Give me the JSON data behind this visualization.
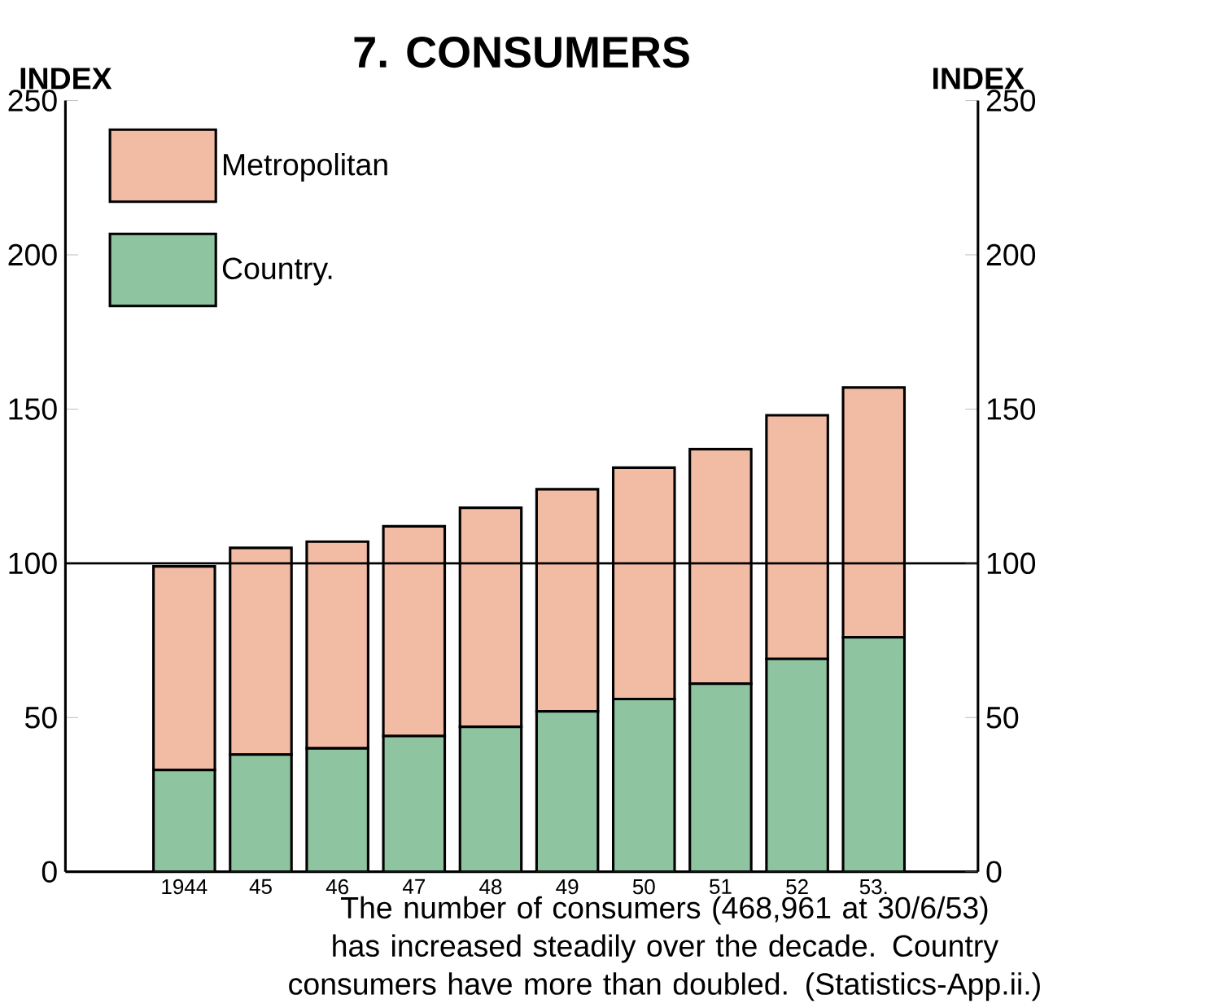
{
  "chart_data": {
    "type": "bar",
    "title": "7. CONSUMERS",
    "ylabel": "INDEX",
    "y2label": "INDEX",
    "categories": [
      "1944",
      "45",
      "46",
      "47",
      "48",
      "49",
      "50",
      "51",
      "52",
      "53."
    ],
    "stacked": true,
    "series": [
      {
        "name": "Country.",
        "color": "#8fc4a0",
        "values": [
          33,
          38,
          40,
          44,
          47,
          52,
          56,
          61,
          69,
          76
        ]
      },
      {
        "name": "Metropolitan",
        "color": "#f2bba3",
        "values": [
          66,
          67,
          67,
          68,
          71,
          72,
          75,
          76,
          79,
          81
        ]
      }
    ],
    "ylim": [
      0,
      250
    ],
    "yticks": [
      0,
      50,
      100,
      150,
      200,
      250
    ],
    "y2lim": [
      0,
      250
    ],
    "y2ticks": [
      0,
      50,
      100,
      150,
      200,
      250
    ],
    "ref_lines": [
      {
        "axis": "y",
        "value": 100
      }
    ],
    "legend": "top left",
    "grid": false,
    "annotations": [
      "The number of consumers (468,961 at 30/6/53) has increased steadily over the decade. Country consumers have more than doubled. (Statistics-App.ii.)"
    ]
  }
}
